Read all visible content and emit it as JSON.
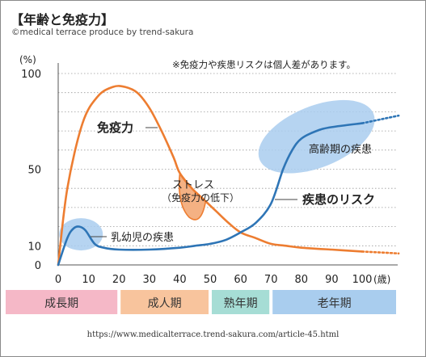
{
  "header": {
    "title": "【年齢と免疫力】",
    "credit": "©medical terrace produce by trend-sakura"
  },
  "chart_data": {
    "type": "line",
    "title": "【年齢と免疫力】",
    "xlabel": "(歳)",
    "ylabel": "(%)",
    "xlim": [
      0,
      112
    ],
    "ylim": [
      0,
      110
    ],
    "x_ticks": [
      "0",
      "10",
      "20",
      "30",
      "40",
      "50",
      "60",
      "70",
      "80",
      "90",
      "100"
    ],
    "y_ticks": [
      "0",
      "10",
      "50",
      "100"
    ],
    "grid": "horizontal dotted",
    "note": "※免疫力や疾患リスクは個人差があります。",
    "colors": {
      "immunity": "#ed7d31",
      "disease": "#2e75b6",
      "highlight_blue": "#a9cdee",
      "highlight_orange": "#f4b183"
    },
    "series": [
      {
        "name": "免疫力",
        "color": "#ed7d31",
        "x": [
          0,
          3,
          8,
          13,
          18,
          22,
          26,
          30,
          34,
          38,
          40,
          44,
          48,
          52,
          56,
          60,
          65,
          70,
          75,
          80,
          90,
          100
        ],
        "y": [
          0,
          40,
          74,
          88,
          93,
          93,
          90,
          82,
          70,
          56,
          48,
          40,
          34,
          28,
          22,
          17,
          14,
          11,
          10,
          9,
          8,
          7
        ],
        "dashed_extension": {
          "x": [
            100,
            112
          ],
          "y": [
            7,
            6
          ]
        }
      },
      {
        "name": "疾患のリスク",
        "color": "#2e75b6",
        "x": [
          0,
          3,
          5,
          7,
          9,
          12,
          15,
          20,
          30,
          40,
          45,
          50,
          55,
          60,
          65,
          70,
          74,
          77,
          80,
          85,
          90,
          100
        ],
        "y": [
          0,
          14,
          19,
          20,
          18,
          11,
          9,
          8,
          8,
          9,
          10,
          11,
          13,
          17,
          22,
          32,
          50,
          60,
          66,
          70,
          72,
          74
        ],
        "dashed_extension": {
          "x": [
            100,
            112
          ],
          "y": [
            74,
            78
          ]
        }
      }
    ],
    "annotations": [
      {
        "label": "免疫力",
        "series": "免疫力"
      },
      {
        "label": "ストレス",
        "sublabel": "（免疫力の低下）"
      },
      {
        "label": "疾患のリスク",
        "series": "疾患のリスク"
      },
      {
        "label": "乳幼児の疾患"
      },
      {
        "label": "高齢期の疾患"
      }
    ],
    "stages": [
      {
        "label": "成長期",
        "from": 0,
        "to": 20,
        "color": "#f5b8c7"
      },
      {
        "label": "成人期",
        "from": 20,
        "to": 50,
        "color": "#f8c49d"
      },
      {
        "label": "熟年期",
        "from": 50,
        "to": 70,
        "color": "#a6ddd5"
      },
      {
        "label": "老年期",
        "from": 70,
        "to": 112,
        "color": "#a9cdee"
      }
    ]
  },
  "footer": {
    "source_url": "https://www.medicalterrace.trend-sakura.com/article-45.html"
  }
}
